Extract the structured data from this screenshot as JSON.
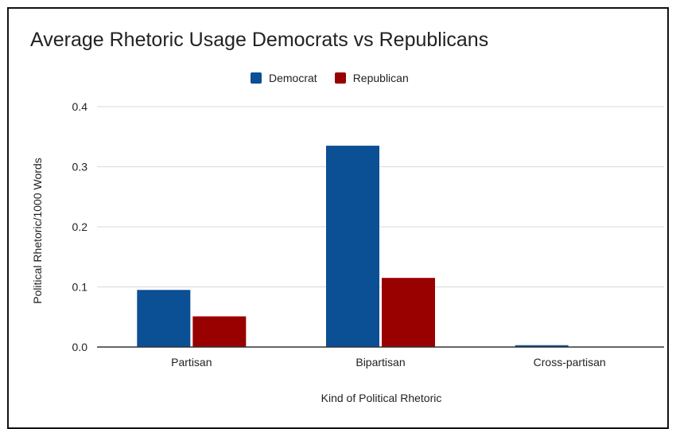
{
  "chart_data": {
    "type": "bar",
    "title": "Average Rhetoric Usage Democrats vs Republicans",
    "xlabel": "Kind of Political Rhetoric",
    "ylabel": "Political Rhetoric/1000 Words",
    "categories": [
      "Partisan",
      "Bipartisan",
      "Cross-partisan"
    ],
    "series": [
      {
        "name": "Democrat",
        "color": "#0B4F94",
        "values": [
          0.095,
          0.335,
          0.003
        ]
      },
      {
        "name": "Republican",
        "color": "#990000",
        "values": [
          0.051,
          0.115,
          0.0
        ]
      }
    ],
    "ylim": [
      0,
      0.4
    ],
    "yticks": [
      "0.0",
      "0.1",
      "0.2",
      "0.3",
      "0.4"
    ],
    "ytick_values": [
      0,
      0.1,
      0.2,
      0.3,
      0.4
    ],
    "grid": true,
    "legend_position": "top-center"
  }
}
